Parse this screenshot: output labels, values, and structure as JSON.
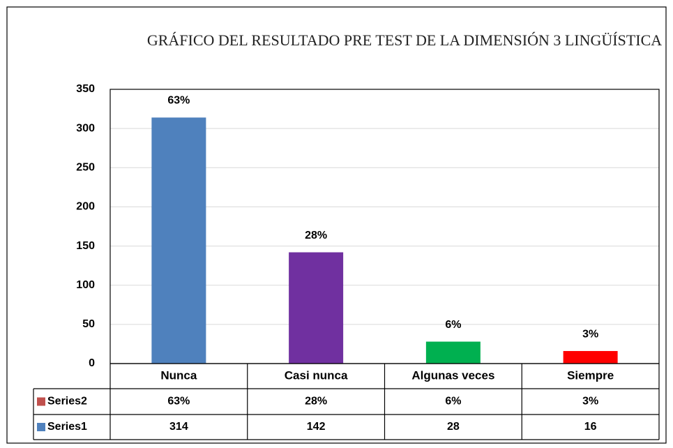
{
  "chart_data": {
    "type": "bar",
    "title": "GRÁFICO DEL RESULTADO PRE TEST DE LA DIMENSIÓN 3 LINGÜÍSTICA",
    "categories": [
      "Nunca",
      "Casi nunca",
      "Algunas veces",
      "Siempre"
    ],
    "series": [
      {
        "name": "Series1",
        "color": "#4f81bd",
        "values": [
          314,
          142,
          28,
          16
        ]
      },
      {
        "name": "Series2",
        "color": "#c0504d",
        "values": [
          63,
          28,
          6,
          3
        ],
        "value_labels": [
          "63%",
          "28%",
          "6%",
          "3%"
        ]
      }
    ],
    "bar_colors": [
      "#4f81bd",
      "#7030a0",
      "#00b050",
      "#ff0000"
    ],
    "ylim": [
      0,
      350
    ],
    "yticks": [
      0,
      50,
      100,
      150,
      200,
      250,
      300,
      350
    ],
    "grid": true
  }
}
